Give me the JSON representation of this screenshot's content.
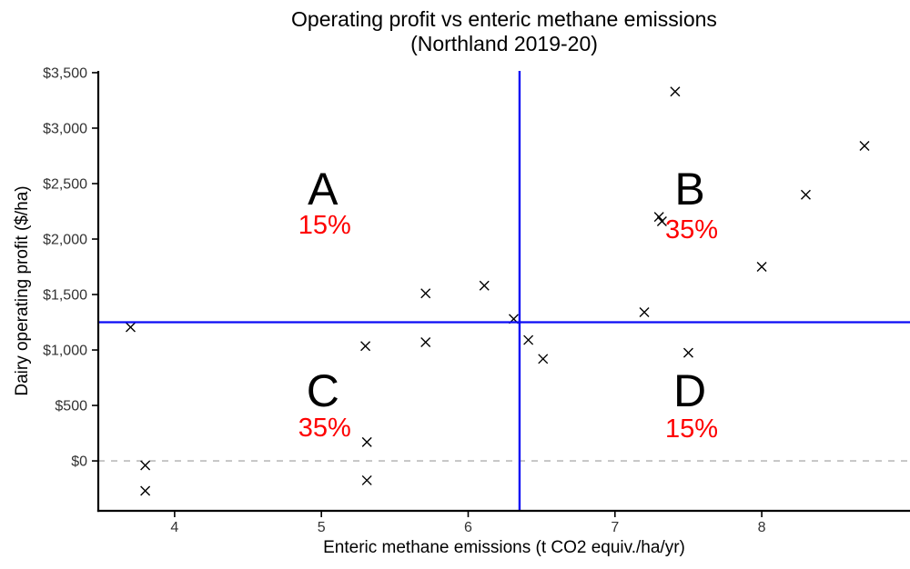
{
  "title": {
    "line1": "Operating profit vs enteric methane emissions",
    "line2": "(Northland 2019-20)"
  },
  "chart_data": {
    "type": "scatter",
    "title": "Operating profit vs enteric methane emissions (Northland 2019-20)",
    "xlabel": "Enteric methane emissions (t CO2 equiv./ha/yr)",
    "ylabel": "Dairy operating profit ($/ha)",
    "xlim": [
      3.48,
      9.01
    ],
    "ylim": [
      -450,
      3516
    ],
    "grid": "off",
    "marker": "x",
    "x_ticks": [
      {
        "value": 4,
        "label": "4"
      },
      {
        "value": 5,
        "label": "5"
      },
      {
        "value": 6,
        "label": "6"
      },
      {
        "value": 7,
        "label": "7"
      },
      {
        "value": 8,
        "label": "8"
      }
    ],
    "y_ticks": [
      {
        "value": 0,
        "label": "$0"
      },
      {
        "value": 500,
        "label": "$500"
      },
      {
        "value": 1000,
        "label": "$1,000"
      },
      {
        "value": 1500,
        "label": "$1,500"
      },
      {
        "value": 2000,
        "label": "$2,000"
      },
      {
        "value": 2500,
        "label": "$2,500"
      },
      {
        "value": 3000,
        "label": "$3,000"
      },
      {
        "value": 3500,
        "label": "$3,500"
      }
    ],
    "points": [
      {
        "x": 3.7,
        "y": 1205,
        "quadrant": "C"
      },
      {
        "x": 3.8,
        "y": -40,
        "quadrant": "C"
      },
      {
        "x": 3.8,
        "y": -270,
        "quadrant": "C"
      },
      {
        "x": 5.3,
        "y": 1035,
        "quadrant": "C"
      },
      {
        "x": 5.31,
        "y": 170,
        "quadrant": "C"
      },
      {
        "x": 5.31,
        "y": -175,
        "quadrant": "C"
      },
      {
        "x": 5.71,
        "y": 1070,
        "quadrant": "C"
      },
      {
        "x": 5.71,
        "y": 1510,
        "quadrant": "A"
      },
      {
        "x": 6.11,
        "y": 1580,
        "quadrant": "A"
      },
      {
        "x": 6.31,
        "y": 1280,
        "quadrant": "A"
      },
      {
        "x": 6.41,
        "y": 1090,
        "quadrant": "D"
      },
      {
        "x": 6.51,
        "y": 920,
        "quadrant": "D"
      },
      {
        "x": 7.5,
        "y": 975,
        "quadrant": "D"
      },
      {
        "x": 7.2,
        "y": 1340,
        "quadrant": "B"
      },
      {
        "x": 7.3,
        "y": 2200,
        "quadrant": "B"
      },
      {
        "x": 7.32,
        "y": 2160,
        "quadrant": "B"
      },
      {
        "x": 7.41,
        "y": 3330,
        "quadrant": "B"
      },
      {
        "x": 8.0,
        "y": 1750,
        "quadrant": "B"
      },
      {
        "x": 8.3,
        "y": 2400,
        "quadrant": "B"
      },
      {
        "x": 8.7,
        "y": 2840,
        "quadrant": "B"
      }
    ],
    "reference_lines": {
      "vertical_threshold_x": 6.35,
      "horizontal_threshold_y": 1250,
      "zero_line_y": 0
    },
    "quadrant_labels": [
      {
        "letter": "A",
        "percent": "15%",
        "x": 5.01,
        "letter_y": 2450,
        "percent_y": 2130
      },
      {
        "letter": "B",
        "percent": "35%",
        "x": 7.51,
        "letter_y": 2450,
        "percent_y": 2090
      },
      {
        "letter": "C",
        "percent": "35%",
        "x": 5.01,
        "letter_y": 630,
        "percent_y": 305
      },
      {
        "letter": "D",
        "percent": "15%",
        "x": 7.51,
        "letter_y": 630,
        "percent_y": 295
      }
    ],
    "colors": {
      "crosshair": "#0b0bf5",
      "zero_line": "#bbbbbb",
      "marker": "#000000",
      "axis": "#000000",
      "tick_text": "#333333",
      "letter_text": "#000000",
      "percent_text": "#fe0000"
    }
  }
}
